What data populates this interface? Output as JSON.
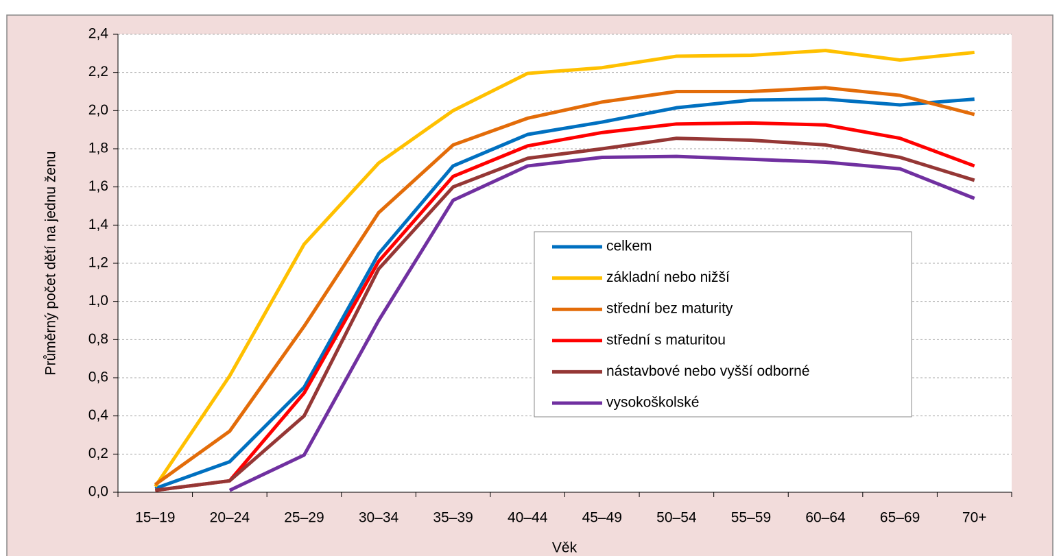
{
  "chart_data": {
    "type": "line",
    "x_label": "Věk",
    "y_label": "Průměrný počet dětí na jednu ženu",
    "categories": [
      "15–19",
      "20–24",
      "25–29",
      "30–34",
      "35–39",
      "40–44",
      "45–49",
      "50–54",
      "55–59",
      "60–64",
      "65–69",
      "70+"
    ],
    "series": [
      {
        "name": "celkem",
        "color": "#0070c0",
        "values": [
          0.02,
          0.16,
          0.55,
          1.25,
          1.71,
          1.875,
          1.94,
          2.015,
          2.055,
          2.06,
          2.03,
          2.06
        ]
      },
      {
        "name": "základní nebo nižší",
        "color": "#ffc000",
        "values": [
          0.03,
          0.61,
          1.3,
          1.725,
          2.0,
          2.195,
          2.225,
          2.285,
          2.29,
          2.315,
          2.265,
          2.305
        ]
      },
      {
        "name": "střední bez maturity",
        "color": "#e36c09",
        "values": [
          0.04,
          0.32,
          0.87,
          1.465,
          1.82,
          1.96,
          2.045,
          2.1,
          2.1,
          2.12,
          2.08,
          1.98
        ]
      },
      {
        "name": "střední s maturitou",
        "color": "#ff0000",
        "values": [
          0.01,
          0.06,
          0.52,
          1.21,
          1.655,
          1.815,
          1.885,
          1.93,
          1.935,
          1.925,
          1.855,
          1.71
        ]
      },
      {
        "name": "nástavbové nebo vyšší odborné",
        "color": "#953735",
        "values": [
          0.01,
          0.06,
          0.4,
          1.17,
          1.6,
          1.75,
          1.8,
          1.855,
          1.845,
          1.82,
          1.755,
          1.635
        ]
      },
      {
        "name": "vysokoškolské",
        "color": "#7030a0",
        "values": [
          null,
          0.01,
          0.195,
          0.9,
          1.53,
          1.71,
          1.755,
          1.76,
          1.745,
          1.73,
          1.695,
          1.54
        ]
      }
    ],
    "ylim": [
      0,
      2.4
    ],
    "yticks": [
      {
        "value": 0,
        "label": "0,0"
      },
      {
        "value": 0.2,
        "label": "0,2"
      },
      {
        "value": 0.4,
        "label": "0,4"
      },
      {
        "value": 0.6,
        "label": "0,6"
      },
      {
        "value": 0.8,
        "label": "0,8"
      },
      {
        "value": 1.0,
        "label": "1,0"
      },
      {
        "value": 1.2,
        "label": "1,2"
      },
      {
        "value": 1.4,
        "label": "1,4"
      },
      {
        "value": 1.6,
        "label": "1,6"
      },
      {
        "value": 1.8,
        "label": "1,8"
      },
      {
        "value": 2.0,
        "label": "2,0"
      },
      {
        "value": 2.2,
        "label": "2,2"
      },
      {
        "value": 2.4,
        "label": "2,4"
      }
    ],
    "grid": true
  }
}
